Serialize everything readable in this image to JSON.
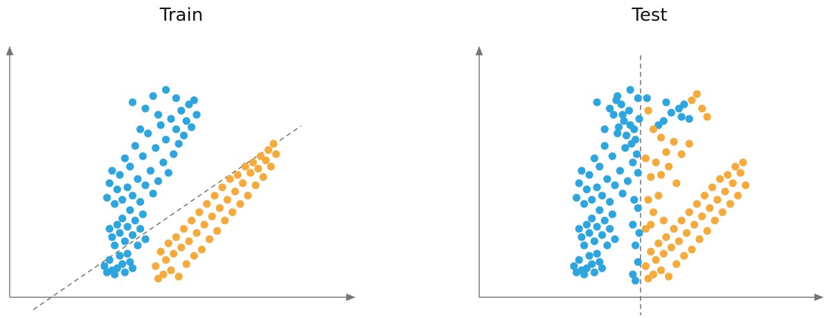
{
  "panels": [
    {
      "title": "Train",
      "boundary": {
        "kind": "diagonal",
        "style": "dashed",
        "color": "#777777"
      },
      "classes": [
        {
          "color": "#2da6e0",
          "points": [
            [
              -1.6,
              1.0
            ],
            [
              -1.5,
              0.7
            ],
            [
              -1.4,
              1.3
            ],
            [
              -1.3,
              0.8
            ],
            [
              -1.2,
              0.6
            ],
            [
              -1.1,
              0.9
            ],
            [
              -1.0,
              1.5
            ],
            [
              -0.9,
              1.1
            ],
            [
              -0.8,
              0.7
            ],
            [
              -0.7,
              1.6
            ],
            [
              -0.6,
              1.2
            ],
            [
              -0.5,
              0.9
            ],
            [
              -1.4,
              2.8
            ],
            [
              -1.3,
              2.4
            ],
            [
              -1.2,
              2.0
            ],
            [
              -1.1,
              3.0
            ],
            [
              -1.0,
              2.6
            ],
            [
              -0.9,
              3.3
            ],
            [
              -0.8,
              2.2
            ],
            [
              -0.7,
              2.9
            ],
            [
              -0.6,
              3.7
            ],
            [
              -0.5,
              2.5
            ],
            [
              -0.4,
              3.2
            ],
            [
              -0.3,
              2.0
            ],
            [
              -0.2,
              2.8
            ],
            [
              -0.1,
              3.5
            ],
            [
              0.0,
              2.3
            ],
            [
              -1.5,
              4.3
            ],
            [
              -1.4,
              5.0
            ],
            [
              -1.3,
              5.6
            ],
            [
              -1.2,
              4.0
            ],
            [
              -1.1,
              4.7
            ],
            [
              -1.0,
              5.4
            ],
            [
              -0.9,
              4.2
            ],
            [
              -0.8,
              6.2
            ],
            [
              -0.7,
              4.8
            ],
            [
              -0.6,
              5.8
            ],
            [
              -0.5,
              4.4
            ],
            [
              -0.4,
              6.8
            ],
            [
              -0.3,
              5.2
            ],
            [
              -0.2,
              4.1
            ],
            [
              -0.1,
              6.3
            ],
            [
              0.0,
              4.9
            ],
            [
              0.1,
              7.4
            ],
            [
              0.2,
              5.6
            ],
            [
              0.3,
              4.5
            ],
            [
              0.4,
              6.7
            ],
            [
              0.5,
              5.1
            ],
            [
              0.6,
              7.8
            ],
            [
              0.7,
              6.0
            ],
            [
              0.8,
              7.1
            ],
            [
              0.9,
              5.5
            ],
            [
              1.0,
              8.1
            ],
            [
              1.1,
              6.4
            ],
            [
              1.2,
              7.6
            ],
            [
              1.3,
              6.9
            ],
            [
              1.4,
              8.5
            ],
            [
              1.5,
              7.3
            ],
            [
              1.6,
              8.0
            ],
            [
              1.7,
              8.8
            ],
            [
              1.8,
              7.7
            ],
            [
              1.9,
              9.0
            ],
            [
              2.0,
              8.3
            ],
            [
              0.0,
              8.6
            ],
            [
              -0.5,
              8.9
            ],
            [
              0.3,
              9.2
            ],
            [
              0.8,
              9.5
            ],
            [
              -0.2,
              7.6
            ],
            [
              0.5,
              8.3
            ],
            [
              1.2,
              9.1
            ]
          ]
        },
        {
          "color": "#f5ab3c",
          "points": [
            [
              0.4,
              1.0
            ],
            [
              0.5,
              0.4
            ],
            [
              0.6,
              1.7
            ],
            [
              0.7,
              0.6
            ],
            [
              0.8,
              1.3
            ],
            [
              0.9,
              2.1
            ],
            [
              1.0,
              0.8
            ],
            [
              1.1,
              1.6
            ],
            [
              1.2,
              2.4
            ],
            [
              1.3,
              0.5
            ],
            [
              1.4,
              1.9
            ],
            [
              1.5,
              2.8
            ],
            [
              1.6,
              1.1
            ],
            [
              1.7,
              2.2
            ],
            [
              1.8,
              3.2
            ],
            [
              1.9,
              1.5
            ],
            [
              2.0,
              2.6
            ],
            [
              2.1,
              3.6
            ],
            [
              2.2,
              1.8
            ],
            [
              2.3,
              3.0
            ],
            [
              2.4,
              4.0
            ],
            [
              2.5,
              2.3
            ],
            [
              2.6,
              3.4
            ],
            [
              2.7,
              4.4
            ],
            [
              2.8,
              2.7
            ],
            [
              2.9,
              3.8
            ],
            [
              3.0,
              4.8
            ],
            [
              3.1,
              3.2
            ],
            [
              3.2,
              4.2
            ],
            [
              3.3,
              5.2
            ],
            [
              3.4,
              3.6
            ],
            [
              3.5,
              4.6
            ],
            [
              3.6,
              5.4
            ],
            [
              3.7,
              4.0
            ],
            [
              3.8,
              5.0
            ],
            [
              3.9,
              5.8
            ],
            [
              4.0,
              4.4
            ],
            [
              4.1,
              5.5
            ],
            [
              4.2,
              6.0
            ],
            [
              4.3,
              4.9
            ],
            [
              4.4,
              5.7
            ],
            [
              4.5,
              6.3
            ],
            [
              4.6,
              5.3
            ],
            [
              4.7,
              6.1
            ],
            [
              4.8,
              6.6
            ],
            [
              4.9,
              5.8
            ],
            [
              5.0,
              6.9
            ],
            [
              5.1,
              6.4
            ]
          ]
        }
      ]
    },
    {
      "title": "Test",
      "boundary": {
        "kind": "vertical",
        "style": "dashed",
        "color": "#777777"
      },
      "classes": [
        {
          "color": "#2da6e0",
          "points": [
            [
              -2.6,
              1.0
            ],
            [
              -2.5,
              0.7
            ],
            [
              -2.4,
              1.3
            ],
            [
              -2.3,
              0.8
            ],
            [
              -2.2,
              0.6
            ],
            [
              -2.1,
              0.9
            ],
            [
              -2.0,
              1.5
            ],
            [
              -1.9,
              1.1
            ],
            [
              -1.8,
              0.7
            ],
            [
              -1.7,
              1.6
            ],
            [
              -1.6,
              1.2
            ],
            [
              -1.5,
              0.9
            ],
            [
              -2.4,
              2.8
            ],
            [
              -2.3,
              2.4
            ],
            [
              -2.2,
              2.0
            ],
            [
              -2.1,
              3.0
            ],
            [
              -2.0,
              2.6
            ],
            [
              -1.9,
              3.3
            ],
            [
              -1.8,
              2.2
            ],
            [
              -1.7,
              2.9
            ],
            [
              -1.6,
              3.7
            ],
            [
              -1.5,
              2.5
            ],
            [
              -1.4,
              3.2
            ],
            [
              -1.3,
              2.0
            ],
            [
              -1.2,
              2.8
            ],
            [
              -1.1,
              3.5
            ],
            [
              -1.0,
              2.3
            ],
            [
              -2.5,
              4.3
            ],
            [
              -2.4,
              5.0
            ],
            [
              -2.3,
              5.6
            ],
            [
              -2.2,
              4.0
            ],
            [
              -2.1,
              4.7
            ],
            [
              -2.0,
              5.4
            ],
            [
              -1.9,
              4.2
            ],
            [
              -1.8,
              6.2
            ],
            [
              -1.7,
              4.8
            ],
            [
              -1.6,
              5.8
            ],
            [
              -1.5,
              4.4
            ],
            [
              -1.4,
              6.8
            ],
            [
              -1.3,
              5.2
            ],
            [
              -1.2,
              4.1
            ],
            [
              -1.1,
              6.3
            ],
            [
              -1.0,
              4.9
            ],
            [
              -0.9,
              7.4
            ],
            [
              -0.8,
              5.6
            ],
            [
              -0.7,
              4.5
            ],
            [
              -0.6,
              6.7
            ],
            [
              -0.5,
              5.1
            ],
            [
              -0.4,
              7.8
            ],
            [
              -0.3,
              6.0
            ],
            [
              -0.2,
              7.1
            ],
            [
              -0.1,
              5.5
            ],
            [
              -0.05,
              8.1
            ],
            [
              -0.15,
              6.4
            ],
            [
              -0.25,
              7.6
            ],
            [
              -0.35,
              6.9
            ],
            [
              -0.45,
              8.5
            ],
            [
              -0.55,
              7.3
            ],
            [
              -0.65,
              8.0
            ],
            [
              -0.75,
              8.8
            ],
            [
              -0.85,
              7.7
            ],
            [
              -0.95,
              9.0
            ],
            [
              -1.05,
              8.3
            ],
            [
              -1.2,
              8.6
            ],
            [
              -1.7,
              8.9
            ],
            [
              -0.9,
              9.2
            ],
            [
              -0.4,
              9.5
            ],
            [
              -1.4,
              7.6
            ],
            [
              -0.7,
              8.3
            ],
            [
              -0.1,
              9.1
            ],
            [
              -0.3,
              3.0
            ],
            [
              -0.2,
              2.0
            ],
            [
              -0.1,
              1.2
            ],
            [
              -0.3,
              0.6
            ],
            [
              -0.2,
              0.3
            ],
            [
              -0.1,
              3.8
            ],
            [
              -0.05,
              2.6
            ],
            [
              -0.25,
              4.2
            ],
            [
              0.25,
              9.1
            ],
            [
              0.7,
              7.8
            ],
            [
              0.9,
              8.0
            ],
            [
              1.2,
              8.4
            ],
            [
              1.0,
              8.9
            ],
            [
              1.5,
              8.6
            ],
            [
              1.7,
              8.8
            ],
            [
              1.9,
              8.1
            ],
            [
              1.6,
              8.2
            ]
          ]
        },
        {
          "color": "#f5ab3c",
          "points": [
            [
              0.2,
              1.0
            ],
            [
              0.3,
              0.4
            ],
            [
              0.4,
              1.7
            ],
            [
              0.5,
              0.6
            ],
            [
              0.6,
              1.3
            ],
            [
              0.7,
              2.1
            ],
            [
              0.8,
              0.8
            ],
            [
              0.9,
              1.6
            ],
            [
              1.0,
              2.4
            ],
            [
              1.1,
              0.5
            ],
            [
              1.2,
              1.9
            ],
            [
              1.3,
              2.8
            ],
            [
              1.4,
              1.1
            ],
            [
              1.5,
              2.2
            ],
            [
              1.6,
              3.2
            ],
            [
              1.7,
              1.5
            ],
            [
              1.8,
              2.6
            ],
            [
              1.9,
              3.6
            ],
            [
              2.0,
              1.8
            ],
            [
              2.1,
              3.0
            ],
            [
              2.2,
              4.0
            ],
            [
              2.3,
              2.3
            ],
            [
              2.4,
              3.4
            ],
            [
              2.5,
              4.4
            ],
            [
              2.6,
              2.7
            ],
            [
              2.7,
              3.8
            ],
            [
              2.8,
              4.8
            ],
            [
              2.9,
              3.2
            ],
            [
              3.0,
              4.2
            ],
            [
              3.1,
              5.2
            ],
            [
              3.2,
              3.6
            ],
            [
              3.3,
              4.6
            ],
            [
              3.4,
              5.4
            ],
            [
              3.5,
              4.0
            ],
            [
              3.6,
              5.0
            ],
            [
              3.7,
              5.8
            ],
            [
              3.8,
              4.4
            ],
            [
              3.9,
              5.5
            ],
            [
              4.0,
              6.0
            ],
            [
              4.1,
              4.9
            ],
            [
              0.3,
              8.5
            ],
            [
              0.5,
              7.6
            ],
            [
              0.8,
              7.2
            ],
            [
              1.0,
              6.5
            ],
            [
              1.3,
              7.0
            ],
            [
              1.6,
              6.4
            ],
            [
              1.9,
              6.9
            ],
            [
              2.0,
              9.0
            ],
            [
              2.2,
              9.3
            ],
            [
              2.4,
              8.6
            ],
            [
              2.6,
              8.2
            ],
            [
              0.2,
              6.2
            ],
            [
              0.4,
              5.3
            ],
            [
              0.6,
              6.0
            ],
            [
              0.8,
              5.4
            ],
            [
              1.1,
              5.8
            ],
            [
              1.4,
              5.0
            ],
            [
              0.3,
              4.2
            ],
            [
              0.5,
              3.6
            ],
            [
              0.7,
              4.4
            ],
            [
              0.9,
              3.2
            ],
            [
              0.2,
              2.8
            ],
            [
              0.4,
              3.0
            ]
          ]
        }
      ]
    }
  ]
}
